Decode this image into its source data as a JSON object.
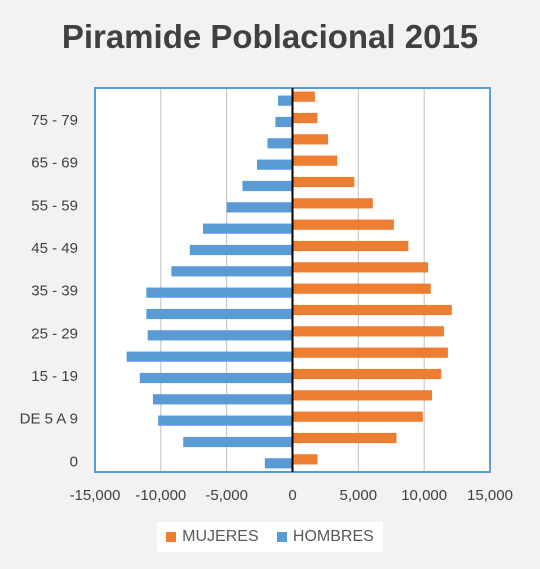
{
  "chart_data": {
    "type": "bar",
    "orientation": "horizontal",
    "title": "Piramide Poblacional 2015",
    "categories": [
      "0",
      "",
      "DE 5 A 9",
      "",
      "15 - 19",
      "",
      "25 - 29",
      "",
      "35 - 39",
      "",
      "45 - 49",
      "",
      "55 - 59",
      "",
      "65 - 69",
      "",
      "75 - 79",
      ""
    ],
    "series": [
      {
        "name": "MUJERES",
        "color": "#ed7d31",
        "values": [
          1900,
          7900,
          9900,
          10600,
          11300,
          11800,
          11500,
          12100,
          10500,
          10300,
          8800,
          7700,
          6100,
          4700,
          3400,
          2700,
          1900,
          1700
        ]
      },
      {
        "name": "HOMBRES",
        "color": "#5b9bd5",
        "values": [
          -2100,
          -8300,
          -10200,
          -10600,
          -11600,
          -12600,
          -11000,
          -11100,
          -11100,
          -9200,
          -7800,
          -6800,
          -5000,
          -3800,
          -2700,
          -1900,
          -1300,
          -1100
        ]
      }
    ],
    "xticks": [
      "-15,000",
      "-10,000",
      "-5,000",
      "0",
      "5,000",
      "10,000",
      "15,000"
    ],
    "xlim": [
      -15000,
      15000
    ],
    "legend_position": "bottom",
    "grid": "vertical"
  }
}
